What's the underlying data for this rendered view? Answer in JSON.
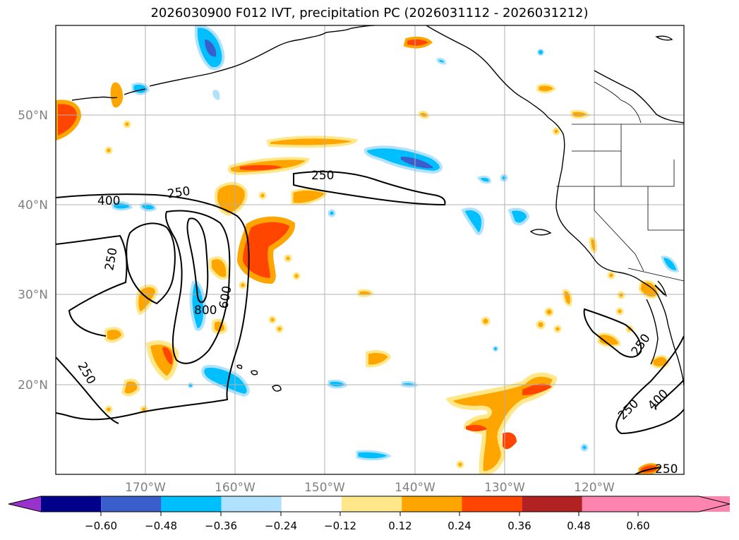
{
  "title": "2026030900 F012 IVT, precipitation PC (2026031112 - 2026031212)",
  "map": {
    "lon_range": [
      -180,
      -110
    ],
    "lat_range": [
      10,
      60
    ],
    "lat_labels": [
      "50°N",
      "40°N",
      "30°N",
      "20°N"
    ],
    "lon_labels": [
      "170°W",
      "160°W",
      "150°W",
      "140°W",
      "130°W",
      "120°W"
    ],
    "ivt_contour_labels": [
      "400",
      "250",
      "250",
      "250",
      "800",
      "600",
      "250",
      "250",
      "250",
      "400",
      "250"
    ]
  },
  "colorbar": {
    "ticks": [
      "−0.60",
      "−0.48",
      "−0.36",
      "−0.24",
      "−0.12",
      "0.12",
      "0.24",
      "0.36",
      "0.48",
      "0.60"
    ],
    "colors": [
      "#9932cc",
      "#00008b",
      "#3a5fcd",
      "#00bfff",
      "#b0e2ff",
      "#ffffff",
      "#ffe78a",
      "#ffa500",
      "#ff4500",
      "#b22222",
      "#ff85b0"
    ]
  }
}
